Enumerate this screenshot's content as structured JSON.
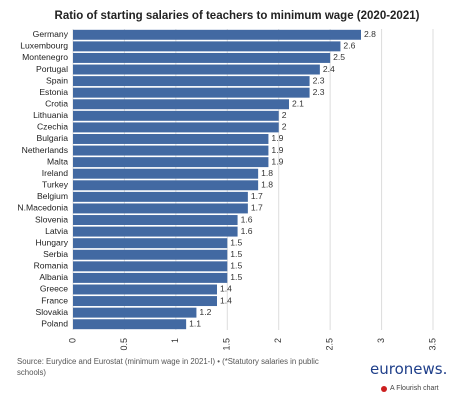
{
  "chart_data": {
    "type": "bar",
    "orientation": "horizontal",
    "title": "Ratio of starting salaries of teachers to minimum wage (2020-2021)",
    "categories": [
      "Germany",
      "Luxembourg",
      "Montenegro",
      "Portugal",
      "Spain",
      "Estonia",
      "Crotia",
      "Lithuania",
      "Czechia",
      "Bulgaria",
      "Netherlands",
      "Malta",
      "Ireland",
      "Turkey",
      "Belgium",
      "N.Macedonia",
      "Slovenia",
      "Latvia",
      "Hungary",
      "Serbia",
      "Romania",
      "Albania",
      "Greece",
      "France",
      "Slovakia",
      "Poland"
    ],
    "values": [
      2.8,
      2.6,
      2.5,
      2.4,
      2.3,
      2.3,
      2.1,
      2,
      2,
      1.9,
      1.9,
      1.9,
      1.8,
      1.8,
      1.7,
      1.7,
      1.6,
      1.6,
      1.5,
      1.5,
      1.5,
      1.5,
      1.4,
      1.4,
      1.2,
      1.1
    ],
    "value_labels": [
      "2.8",
      "2.6",
      "2.5",
      "2.4",
      "2.3",
      "2.3",
      "2.1",
      "2",
      "2",
      "1.9",
      "1.9",
      "1.9",
      "1.8",
      "1.8",
      "1.7",
      "1.7",
      "1.6",
      "1.6",
      "1.5",
      "1.5",
      "1.5",
      "1.5",
      "1.4",
      "1.4",
      "1.2",
      "1.1"
    ],
    "xlim": [
      0,
      3.5
    ],
    "x_ticks": [
      "0",
      "0.5",
      "1",
      "1.5",
      "2",
      "2.5",
      "3",
      "3.5"
    ],
    "grid": true,
    "bar_color": "#4269a2"
  },
  "source": "Source: Eurydice and Eurostat (minimum wage in 2021-I) • (*Statutory salaries in public schools)",
  "brand": "euronews.",
  "flourish_label": "A Flourish chart"
}
